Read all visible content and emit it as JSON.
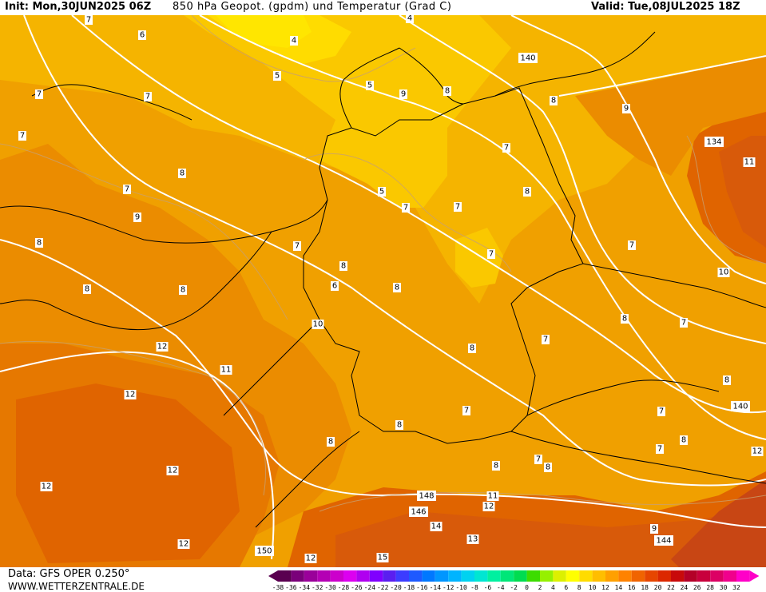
{
  "header": {
    "init": "Init: Mon,30JUN2025 06Z",
    "parameter": "850  hPa  Geopot.  (gpdm)  und  Temperatur  (Grad  C)",
    "valid": "Valid: Tue,08JUL2025 18Z"
  },
  "footer": {
    "data_source": "Data: GFS OPER 0.250°",
    "website": "WWW.WETTERZENTRALE.DE"
  },
  "colorbar": {
    "labels": [
      "-38",
      "-36",
      "-34",
      "-32",
      "-30",
      "-28",
      "-26",
      "-24",
      "-22",
      "-20",
      "-18",
      "-16",
      "-14",
      "-12",
      "-10",
      "-8",
      "-6",
      "-4",
      "-2",
      "0",
      "2",
      "4",
      "6",
      "8",
      "10",
      "12",
      "14",
      "16",
      "18",
      "20",
      "22",
      "24",
      "26",
      "28",
      "30",
      "32"
    ],
    "colors": [
      "#5a0050",
      "#7a007a",
      "#9a009a",
      "#b400b4",
      "#cc00cc",
      "#dc00f0",
      "#b000f0",
      "#8000ff",
      "#5a1ef0",
      "#3c3cff",
      "#1e5aff",
      "#0078ff",
      "#0096ff",
      "#00b4ff",
      "#00d2f0",
      "#00e6d2",
      "#00f0a0",
      "#00e678",
      "#00dc50",
      "#3cdc00",
      "#96f000",
      "#dcf000",
      "#ffff00",
      "#ffdc00",
      "#ffbe00",
      "#ffa000",
      "#ff8200",
      "#f06400",
      "#e64600",
      "#dc2800",
      "#c80a0a",
      "#b40028",
      "#c8003c",
      "#dc0064",
      "#f0008c",
      "#ff00c8"
    ]
  },
  "map_labels": {
    "temperature": [
      "7",
      "6",
      "4",
      "4",
      "7",
      "7",
      "5",
      "5",
      "7",
      "8",
      "7",
      "8",
      "9",
      "7",
      "8",
      "8",
      "7",
      "8",
      "9",
      "8",
      "7",
      "7",
      "8",
      "7",
      "8",
      "6",
      "5",
      "8",
      "9",
      "10",
      "11",
      "12",
      "12",
      "12",
      "12",
      "8",
      "8",
      "8",
      "7",
      "8",
      "7",
      "8",
      "7",
      "7",
      "8",
      "7",
      "8",
      "7",
      "7",
      "8",
      "9",
      "10",
      "12",
      "13",
      "14",
      "11",
      "12",
      "11",
      "12",
      "12",
      "15"
    ],
    "geopotential": [
      "140",
      "134",
      "140",
      "146",
      "148",
      "150",
      "144"
    ]
  }
}
